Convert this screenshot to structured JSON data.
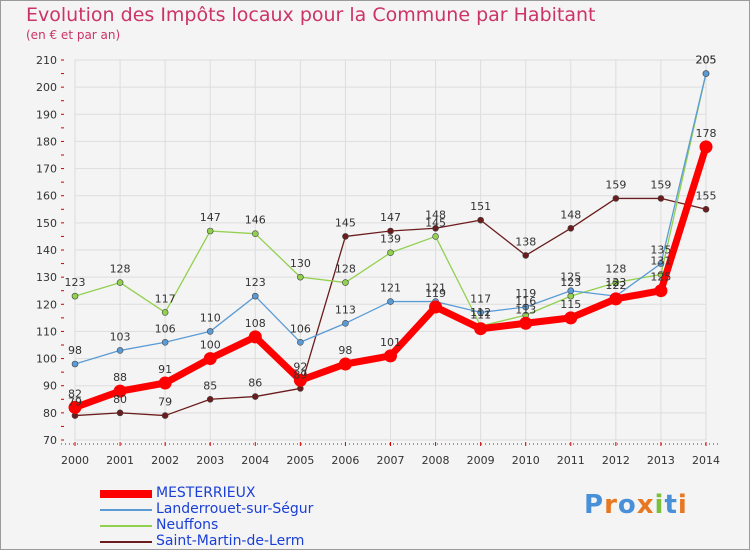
{
  "chart_data": {
    "type": "line",
    "title": "Evolution des Impôts locaux pour la Commune par Habitant",
    "subtitle": "(en € et par an)",
    "xlabel": "",
    "ylabel": "",
    "x": [
      "2000",
      "2001",
      "2002",
      "2003",
      "2004",
      "2005",
      "2006",
      "2007",
      "2008",
      "2009",
      "2010",
      "2011",
      "2012",
      "2013",
      "2014"
    ],
    "ylim": [
      70,
      210
    ],
    "yticks": [
      70,
      80,
      90,
      100,
      110,
      120,
      130,
      140,
      150,
      160,
      170,
      180,
      190,
      200,
      210
    ],
    "grid": true,
    "legend": "bottom-left",
    "series": [
      {
        "name": "MESTERRIEUX",
        "color": "#ff0000",
        "values": [
          82,
          88,
          91,
          100,
          108,
          92,
          98,
          101,
          119,
          111,
          113,
          115,
          122,
          125,
          178
        ],
        "labels": [
          "82",
          "88",
          "91",
          "100",
          "108",
          "92",
          "98",
          "101",
          "119",
          "111",
          "113",
          "115",
          "122",
          "125",
          "178"
        ]
      },
      {
        "name": "Landerrouet-sur-Ségur",
        "color": "#5b9bd5",
        "values": [
          98,
          103,
          106,
          110,
          123,
          106,
          113,
          121,
          121,
          117,
          119,
          125,
          123,
          135,
          205
        ],
        "labels": [
          "98",
          "103",
          "106",
          "110",
          "123",
          "106",
          "113",
          "121",
          "121",
          "117",
          "119",
          "125",
          "123",
          "135",
          "205"
        ]
      },
      {
        "name": "Neuffons",
        "color": "#92d050",
        "values": [
          123,
          128,
          117,
          147,
          146,
          130,
          128,
          139,
          145,
          112,
          116,
          123,
          128,
          131,
          205
        ],
        "labels": [
          "123",
          "128",
          "117",
          "147",
          "146",
          "130",
          "128",
          "139",
          "145",
          "112",
          "116",
          "123",
          "128",
          "131",
          "205"
        ]
      },
      {
        "name": "Saint-Martin-de-Lerm",
        "color": "#6b1c1c",
        "values": [
          79,
          80,
          79,
          85,
          86,
          89,
          145,
          147,
          148,
          151,
          138,
          148,
          159,
          159,
          155
        ],
        "labels": [
          "79",
          "80",
          "79",
          "85",
          "86",
          "89",
          "145",
          "147",
          "148",
          "151",
          "138",
          "148",
          "159",
          "159",
          "155"
        ]
      }
    ]
  },
  "legend_text_color": "#1a3fd6",
  "logo": {
    "text": "Proxiti",
    "colors": [
      "#4a90d9",
      "#e87722",
      "#4a90d9",
      "#e87722",
      "#7cbf3b",
      "#4a90d9",
      "#e87722"
    ]
  }
}
